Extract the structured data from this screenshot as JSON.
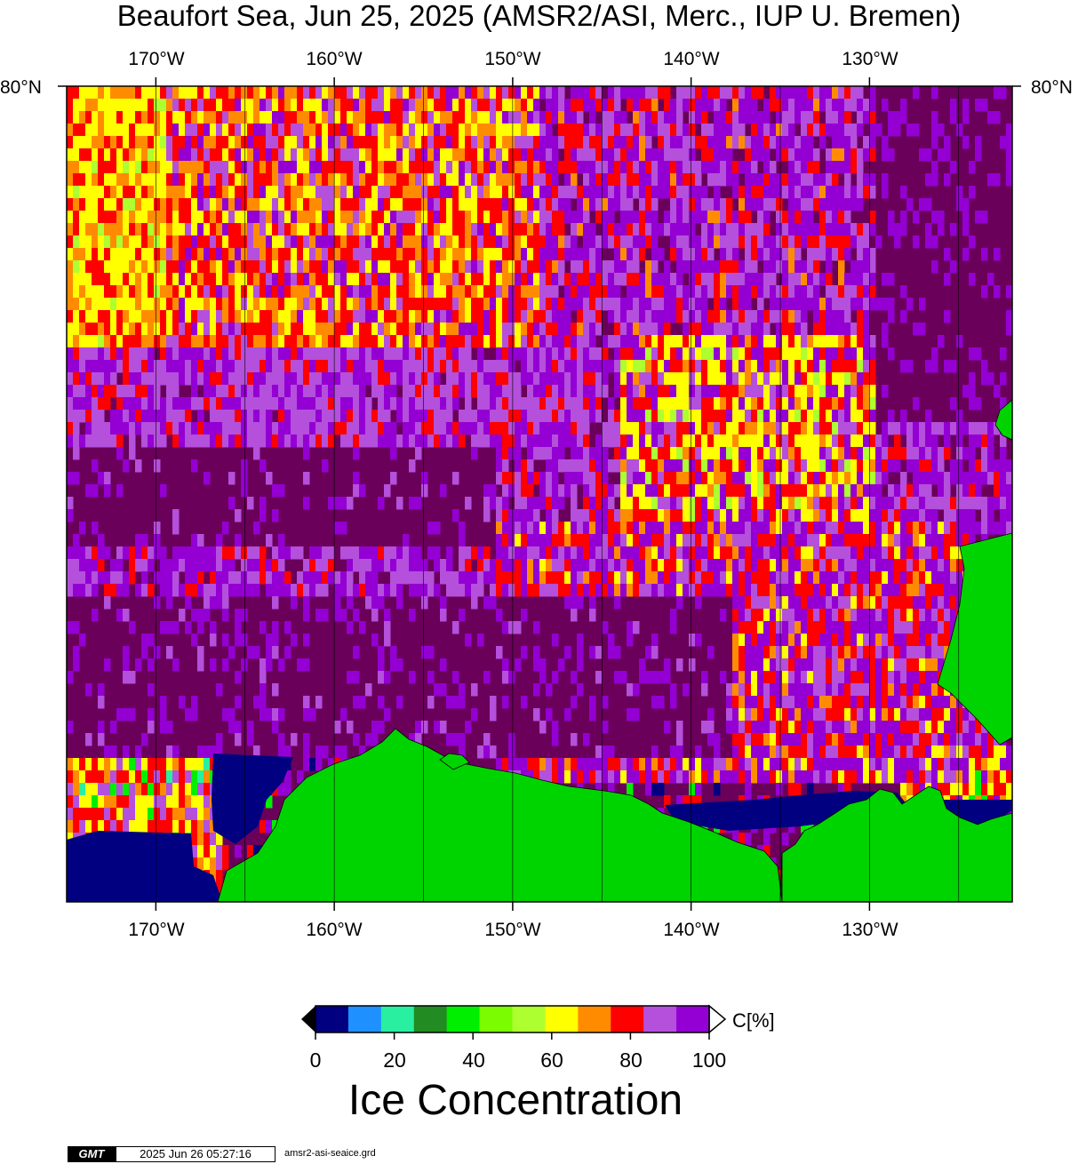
{
  "title": "Beaufort Sea, Jun 25, 2025 (AMSR2/ASI, Merc., IUP U. Bremen)",
  "lon_labels": [
    "170°W",
    "160°W",
    "150°W",
    "140°W",
    "130°W"
  ],
  "lat_label": "80°N",
  "map": {
    "land_color": "#00d400",
    "grid_color": "#000000",
    "region": {
      "lon_min": -175,
      "lon_max": -122,
      "lat_min": 68.5,
      "lat_max": 80
    },
    "meridians": [
      -170,
      -165,
      -160,
      -155,
      -150,
      -145,
      -140,
      -135,
      -130,
      -125
    ]
  },
  "colorbar": {
    "colors": [
      "#000080",
      "#1e90ff",
      "#28f0a0",
      "#228b22",
      "#00ee00",
      "#7cfc00",
      "#adff2f",
      "#ffff00",
      "#ff8c00",
      "#ff0000",
      "#b450dc",
      "#9400d3"
    ],
    "ticks": [
      "0",
      "20",
      "40",
      "60",
      "80",
      "100"
    ],
    "unit": "C[%]",
    "label": "Ice Concentration",
    "range": [
      0,
      100
    ],
    "over_color": "#6a005a"
  },
  "footer": {
    "logo": "GMT",
    "timestamp": "2025 Jun 26 05:27:16",
    "grid_file": "amsr2-asi-seaice.grd"
  }
}
